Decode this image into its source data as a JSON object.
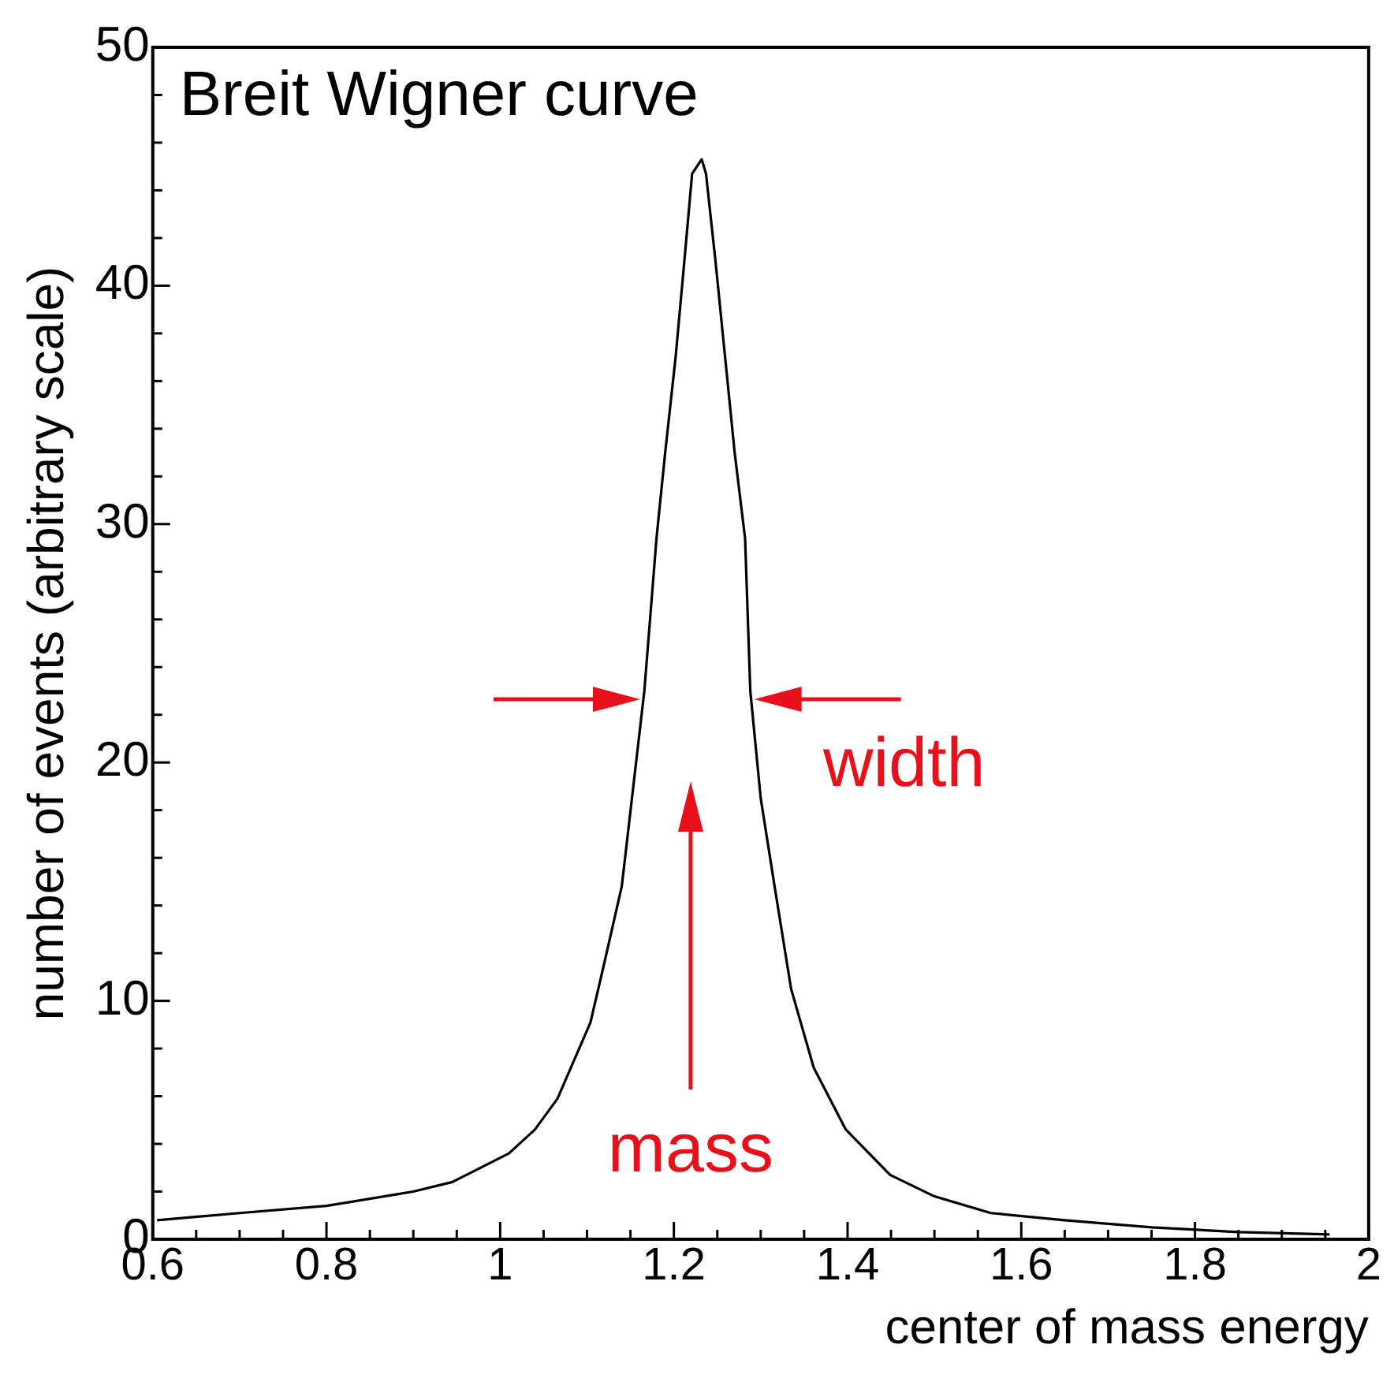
{
  "chart_data": {
    "type": "line",
    "title": "Breit Wigner curve",
    "xlabel": "center of mass energy",
    "ylabel": "number of events (arbitrary scale)",
    "x": [
      0.605,
      0.7,
      0.8,
      0.9,
      0.945,
      1.01,
      1.04,
      1.066,
      1.104,
      1.12,
      1.14,
      1.166,
      1.18,
      1.19,
      1.202,
      1.212,
      1.221,
      1.232,
      1.237,
      1.248,
      1.259,
      1.27,
      1.282,
      1.288,
      1.3,
      1.316,
      1.335,
      1.361,
      1.398,
      1.449,
      1.5,
      1.565,
      1.65,
      1.75,
      1.85,
      1.955
    ],
    "series": [
      {
        "color": "#000000",
        "values": [
          0.8,
          1.1,
          1.4,
          2.0,
          2.4,
          3.6,
          4.6,
          5.9,
          9.1,
          11.6,
          14.8,
          23,
          29.4,
          33,
          37,
          41,
          44.7,
          45.3,
          44.7,
          41,
          37,
          33,
          29.4,
          23,
          18.5,
          14.8,
          10.5,
          7.2,
          4.6,
          2.7,
          1.8,
          1.1,
          0.8,
          0.5,
          0.3,
          0.2
        ]
      }
    ],
    "xlim": [
      0.6,
      2
    ],
    "ylim": [
      0,
      50
    ],
    "xticks": [
      0.6,
      {
        "value": 0.65,
        "label": null
      },
      {
        "value": 0.7,
        "label": null
      },
      {
        "value": 0.75,
        "label": null
      },
      0.8,
      {
        "value": 0.85,
        "label": null
      },
      {
        "value": 0.9,
        "label": null
      },
      {
        "value": 0.95,
        "label": null
      },
      1,
      {
        "value": 1.05,
        "label": null
      },
      {
        "value": 1.1,
        "label": null
      },
      {
        "value": 1.15,
        "label": null
      },
      1.2,
      {
        "value": 1.25,
        "label": null
      },
      {
        "value": 1.3,
        "label": null
      },
      {
        "value": 1.35,
        "label": null
      },
      1.4,
      {
        "value": 1.45,
        "label": null
      },
      {
        "value": 1.5,
        "label": null
      },
      {
        "value": 1.55,
        "label": null
      },
      1.6,
      {
        "value": 1.65,
        "label": null
      },
      {
        "value": 1.7,
        "label": null
      },
      {
        "value": 1.75,
        "label": null
      },
      1.8,
      {
        "value": 1.85,
        "label": null
      },
      {
        "value": 1.9,
        "label": null
      },
      {
        "value": 1.95,
        "label": null
      },
      2
    ],
    "yticks": [
      0,
      {
        "value": 2,
        "label": null
      },
      {
        "value": 4,
        "label": null
      },
      {
        "value": 6,
        "label": null
      },
      {
        "value": 8,
        "label": null
      },
      10,
      {
        "value": 12,
        "label": null
      },
      {
        "value": 14,
        "label": null
      },
      {
        "value": 16,
        "label": null
      },
      {
        "value": 18,
        "label": null
      },
      20,
      {
        "value": 22,
        "label": null
      },
      {
        "value": 24,
        "label": null
      },
      {
        "value": 26,
        "label": null
      },
      {
        "value": 28,
        "label": null
      },
      30,
      {
        "value": 32,
        "label": null
      },
      {
        "value": 34,
        "label": null
      },
      {
        "value": 36,
        "label": null
      },
      {
        "value": 38,
        "label": null
      },
      40,
      {
        "value": 42,
        "label": null
      },
      {
        "value": 44,
        "label": null
      },
      {
        "value": 46,
        "label": null
      },
      {
        "value": 48,
        "label": null
      },
      50
    ],
    "annotations": [
      "width",
      "mass"
    ],
    "grid": false,
    "legend": false,
    "marker": "none",
    "line_style": "solid"
  }
}
